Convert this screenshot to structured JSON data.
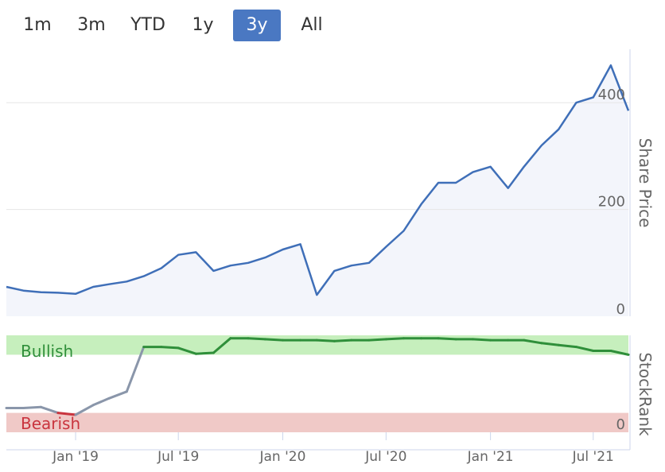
{
  "range_selector": {
    "buttons": [
      {
        "label": "1m",
        "active": false
      },
      {
        "label": "3m",
        "active": false
      },
      {
        "label": "YTD",
        "active": false
      },
      {
        "label": "1y",
        "active": false
      },
      {
        "label": "3y",
        "active": true
      },
      {
        "label": "All",
        "active": false
      }
    ]
  },
  "colors": {
    "price_line": "#3f6fb8",
    "price_fill": "#f3f5fb",
    "bullish_band": "#c6efbd",
    "bearish_band": "#f0c9c7",
    "rank_bull": "#2f8f3a",
    "rank_neutral": "#8a96aa",
    "rank_bear": "#c9343e",
    "active_button": "#4a78c2"
  },
  "chart_data": [
    {
      "type": "area",
      "ylabel": "Share Price",
      "ylim": [
        0,
        500
      ],
      "yticks": [
        "0",
        "200",
        "400"
      ],
      "x": [
        "2018-09-01",
        "2018-10-01",
        "2018-11-01",
        "2018-12-01",
        "2019-01-01",
        "2019-02-01",
        "2019-03-01",
        "2019-04-01",
        "2019-05-01",
        "2019-06-01",
        "2019-07-01",
        "2019-08-01",
        "2019-09-01",
        "2019-10-01",
        "2019-11-01",
        "2019-12-01",
        "2020-01-01",
        "2020-02-01",
        "2020-03-01",
        "2020-04-01",
        "2020-05-01",
        "2020-06-01",
        "2020-07-01",
        "2020-08-01",
        "2020-09-01",
        "2020-10-01",
        "2020-11-01",
        "2020-12-01",
        "2021-01-01",
        "2021-02-01",
        "2021-03-01",
        "2021-04-01",
        "2021-05-01",
        "2021-06-01",
        "2021-07-01",
        "2021-08-01",
        "2021-09-01"
      ],
      "values": [
        55,
        48,
        45,
        44,
        42,
        55,
        60,
        65,
        75,
        90,
        115,
        120,
        85,
        95,
        100,
        110,
        125,
        135,
        40,
        85,
        95,
        100,
        130,
        160,
        210,
        250,
        250,
        270,
        280,
        240,
        280,
        320,
        350,
        400,
        410,
        470,
        385
      ]
    },
    {
      "type": "line",
      "ylabel": "StockRank",
      "ylim": [
        0,
        100
      ],
      "yticks": [
        "0"
      ],
      "bands": [
        {
          "label": "Bullish",
          "from": 80,
          "to": 100
        },
        {
          "label": "Bearish",
          "from": 0,
          "to": 20
        }
      ],
      "xticks": [
        "Jan '19",
        "Jul '19",
        "Jan '20",
        "Jul '20",
        "Jan '21",
        "Jul '21"
      ],
      "x": [
        "2018-09-01",
        "2018-10-01",
        "2018-11-01",
        "2018-12-01",
        "2019-01-01",
        "2019-02-01",
        "2019-03-01",
        "2019-04-01",
        "2019-05-01",
        "2019-06-01",
        "2019-07-01",
        "2019-08-01",
        "2019-09-01",
        "2019-10-01",
        "2019-11-01",
        "2019-12-01",
        "2020-01-01",
        "2020-02-01",
        "2020-03-01",
        "2020-04-01",
        "2020-05-01",
        "2020-06-01",
        "2020-07-01",
        "2020-08-01",
        "2020-09-01",
        "2020-10-01",
        "2020-11-01",
        "2020-12-01",
        "2021-01-01",
        "2021-02-01",
        "2021-03-01",
        "2021-04-01",
        "2021-05-01",
        "2021-06-01",
        "2021-07-01",
        "2021-08-01",
        "2021-09-01"
      ],
      "values": [
        25,
        25,
        26,
        20,
        18,
        28,
        35,
        42,
        88,
        88,
        87,
        81,
        82,
        97,
        97,
        96,
        95,
        95,
        95,
        94,
        95,
        95,
        96,
        97,
        97,
        97,
        96,
        96,
        95,
        95,
        95,
        92,
        90,
        88,
        84,
        84,
        80
      ]
    }
  ]
}
